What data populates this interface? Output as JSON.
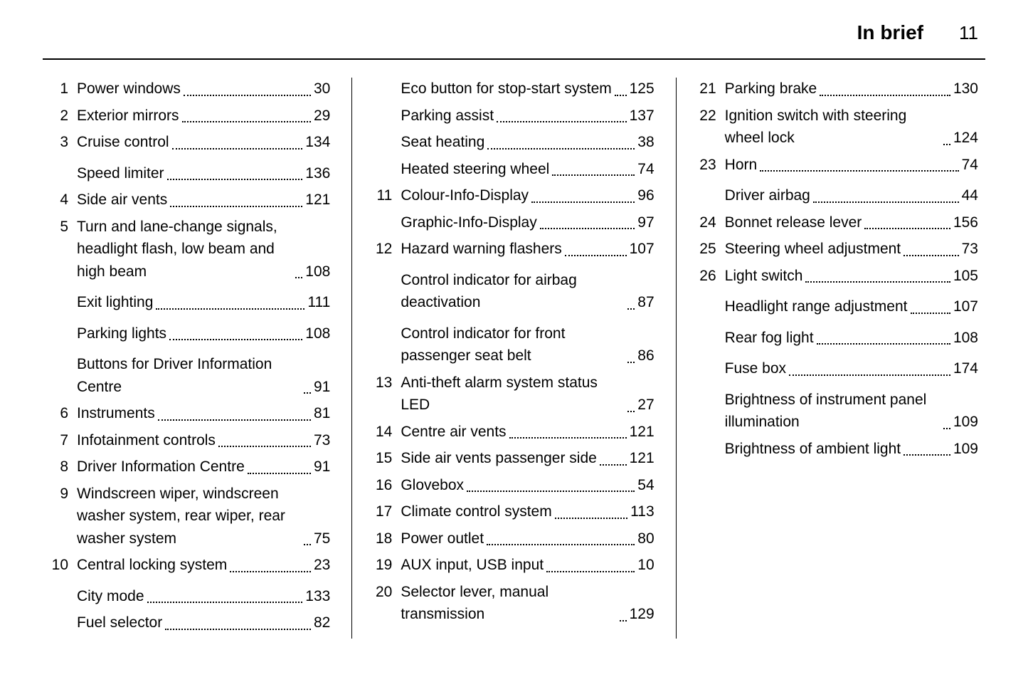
{
  "header": {
    "title": "In brief",
    "page": "11"
  },
  "columns": [
    [
      {
        "num": "1",
        "label": "Power windows",
        "page": "30"
      },
      {
        "num": "2",
        "label": "Exterior mirrors",
        "page": "29"
      },
      {
        "num": "3",
        "label": "Cruise control",
        "page": "134"
      },
      {
        "num": "",
        "label": "Speed limiter",
        "page": "136",
        "sub": true
      },
      {
        "num": "4",
        "label": "Side air vents",
        "page": "121"
      },
      {
        "num": "5",
        "label": "Turn and lane-change signals, headlight flash, low beam and high beam",
        "page": "108"
      },
      {
        "num": "",
        "label": "Exit lighting",
        "page": "111",
        "sub": true
      },
      {
        "num": "",
        "label": "Parking lights",
        "page": "108",
        "sub": true
      },
      {
        "num": "",
        "label": "Buttons for Driver Information Centre",
        "page": "91",
        "sub": true
      },
      {
        "num": "6",
        "label": "Instruments",
        "page": "81"
      },
      {
        "num": "7",
        "label": "Infotainment controls",
        "page": "73"
      },
      {
        "num": "8",
        "label": "Driver Information Centre",
        "page": "91"
      },
      {
        "num": "9",
        "label": "Windscreen wiper, windscreen washer system, rear wiper, rear washer system",
        "page": "75"
      },
      {
        "num": "10",
        "label": "Central locking system",
        "page": "23"
      },
      {
        "num": "",
        "label": "City mode",
        "page": "133",
        "sub": true
      },
      {
        "num": "",
        "label": "Fuel selector",
        "page": "82"
      }
    ],
    [
      {
        "num": "",
        "label": "Eco button for stop-start system",
        "page": "125"
      },
      {
        "num": "",
        "label": "Parking assist",
        "page": "137"
      },
      {
        "num": "",
        "label": "Seat heating",
        "page": "38"
      },
      {
        "num": "",
        "label": "Heated steering wheel",
        "page": "74"
      },
      {
        "num": "11",
        "label": "Colour-Info-Display",
        "page": "96"
      },
      {
        "num": "",
        "label": "Graphic-Info-Display",
        "page": "97"
      },
      {
        "num": "12",
        "label": "Hazard warning flashers",
        "page": "107"
      },
      {
        "num": "",
        "label": "Control indicator for airbag deactivation",
        "page": "87",
        "sub": true
      },
      {
        "num": "",
        "label": "Control indicator for front passenger seat belt",
        "page": "86",
        "sub": true
      },
      {
        "num": "13",
        "label": "Anti-theft alarm system status LED",
        "page": "27"
      },
      {
        "num": "14",
        "label": "Centre air vents",
        "page": "121"
      },
      {
        "num": "15",
        "label": "Side air vents passenger side",
        "page": "121"
      },
      {
        "num": "16",
        "label": "Glovebox",
        "page": "54"
      },
      {
        "num": "17",
        "label": "Climate control system",
        "page": "113"
      },
      {
        "num": "18",
        "label": "Power outlet",
        "page": "80"
      },
      {
        "num": "19",
        "label": "AUX input, USB input",
        "page": "10"
      },
      {
        "num": "20",
        "label": "Selector lever, manual transmission",
        "page": "129"
      }
    ],
    [
      {
        "num": "21",
        "label": "Parking brake",
        "page": "130"
      },
      {
        "num": "22",
        "label": "Ignition switch with steering wheel lock",
        "page": "124"
      },
      {
        "num": "23",
        "label": "Horn",
        "page": "74"
      },
      {
        "num": "",
        "label": "Driver airbag",
        "page": "44",
        "sub": true
      },
      {
        "num": "24",
        "label": "Bonnet release lever",
        "page": "156"
      },
      {
        "num": "25",
        "label": "Steering wheel adjustment",
        "page": "73"
      },
      {
        "num": "26",
        "label": "Light switch",
        "page": "105"
      },
      {
        "num": "",
        "label": "Headlight range adjustment",
        "page": "107",
        "sub": true
      },
      {
        "num": "",
        "label": "Rear fog light",
        "page": "108",
        "sub": true
      },
      {
        "num": "",
        "label": "Fuse box",
        "page": "174",
        "sub": true
      },
      {
        "num": "",
        "label": "Brightness of instrument panel illumination",
        "page": "109",
        "sub": true
      },
      {
        "num": "",
        "label": "Brightness of ambient light",
        "page": "109"
      }
    ]
  ]
}
